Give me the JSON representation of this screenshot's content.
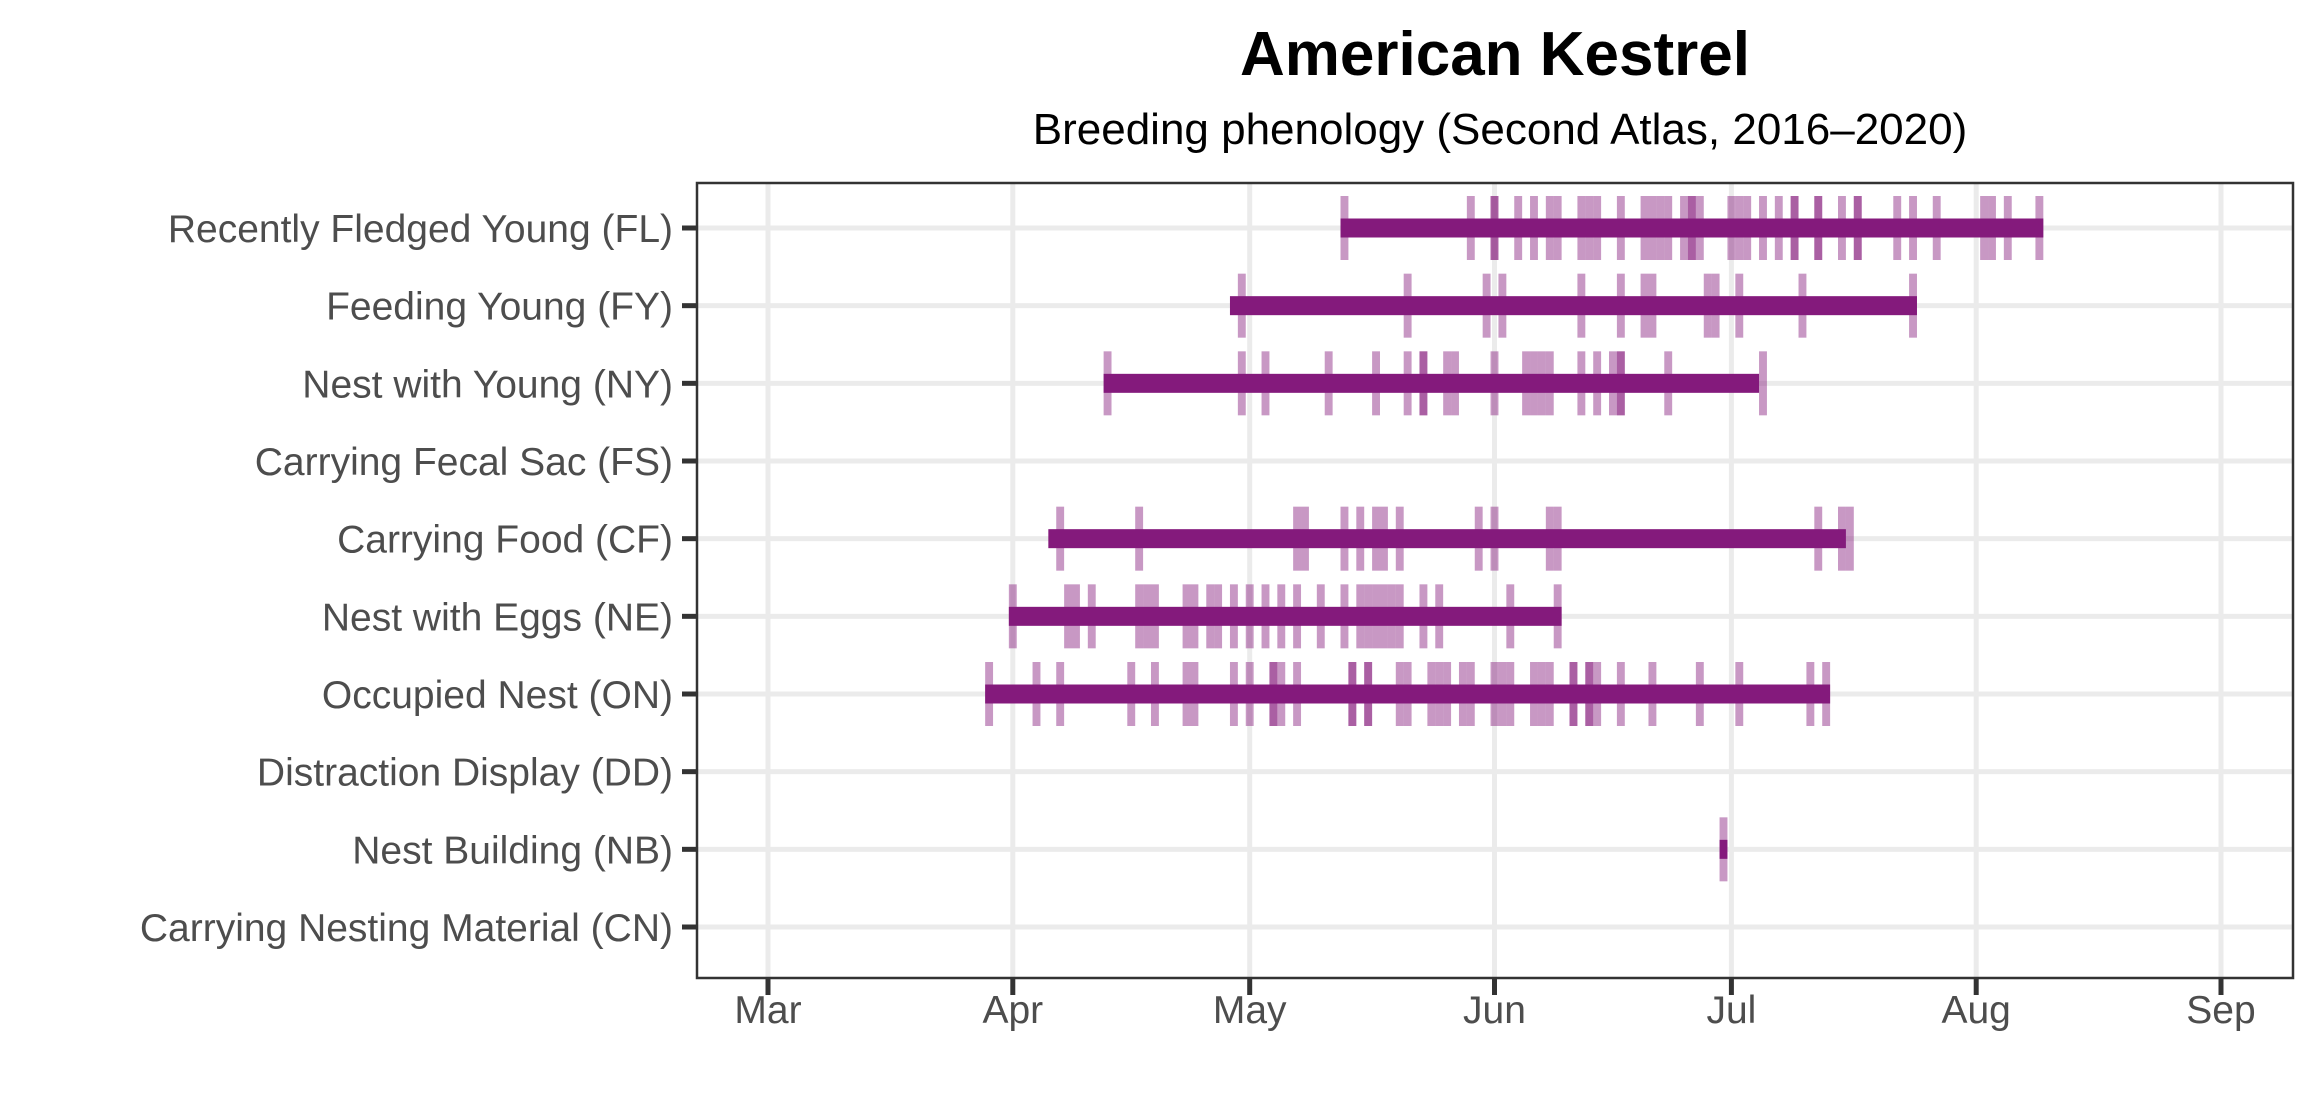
{
  "chart_data": {
    "type": "timeline",
    "title": "American Kestrel",
    "subtitle": "Breeding phenology (Second Atlas, 2016–2020)",
    "xlabel": "",
    "ylabel": "",
    "x_units": "day of year",
    "xlim": [
      54,
      250
    ],
    "x_ticks": [
      {
        "label": "Mar",
        "doy": 60
      },
      {
        "label": "Apr",
        "doy": 91
      },
      {
        "label": "May",
        "doy": 121
      },
      {
        "label": "Jun",
        "doy": 152
      },
      {
        "label": "Jul",
        "doy": 182
      },
      {
        "label": "Aug",
        "doy": 213
      },
      {
        "label": "Sep",
        "doy": 244
      }
    ],
    "grid": true,
    "colors": {
      "bar": "#841a7c",
      "observation": "#841a7c",
      "grid": "#ebebeb",
      "axis": "#333333",
      "label": "#4d4d4d"
    },
    "series": [
      {
        "name": "Recently Fledged Young (FL)",
        "range": [
          133,
          222
        ],
        "observations": [
          133,
          149,
          152,
          152,
          155,
          157,
          159,
          160,
          163,
          164,
          165,
          168,
          171,
          172,
          173,
          174,
          176,
          177,
          177,
          178,
          182,
          183,
          184,
          186,
          188,
          190,
          190,
          193,
          193,
          196,
          198,
          198,
          203,
          205,
          208,
          214,
          215,
          217,
          221
        ]
      },
      {
        "name": "Feeding Young (FY)",
        "range": [
          119,
          206
        ],
        "observations": [
          120,
          141,
          151,
          153,
          163,
          168,
          171,
          172,
          179,
          180,
          183,
          191,
          205
        ]
      },
      {
        "name": "Nest with Young (NY)",
        "range": [
          103,
          186
        ],
        "observations": [
          103,
          120,
          123,
          131,
          137,
          141,
          143,
          143,
          146,
          147,
          152,
          156,
          157,
          158,
          159,
          163,
          165,
          167,
          168,
          168,
          174,
          186
        ]
      },
      {
        "name": "Carrying Fecal Sac (FS)",
        "range": null,
        "observations": []
      },
      {
        "name": "Carrying Food (CF)",
        "range": [
          96,
          197
        ],
        "observations": [
          97,
          107,
          127,
          128,
          133,
          135,
          137,
          138,
          140,
          150,
          152,
          159,
          160,
          193,
          196,
          197
        ]
      },
      {
        "name": "Nest with Eggs (NE)",
        "range": [
          91,
          161
        ],
        "observations": [
          91,
          98,
          99,
          101,
          107,
          108,
          109,
          113,
          114,
          116,
          117,
          119,
          121,
          123,
          125,
          127,
          130,
          133,
          135,
          136,
          137,
          138,
          139,
          140,
          143,
          145,
          154,
          160
        ]
      },
      {
        "name": "Occupied Nest (ON)",
        "range": [
          88,
          195
        ],
        "observations": [
          88,
          94,
          97,
          106,
          109,
          113,
          114,
          119,
          121,
          124,
          124,
          125,
          127,
          134,
          134,
          136,
          136,
          140,
          141,
          144,
          145,
          146,
          148,
          149,
          152,
          153,
          154,
          157,
          158,
          159,
          162,
          162,
          164,
          164,
          165,
          168,
          172,
          178,
          183,
          192,
          194
        ]
      },
      {
        "name": "Distraction Display (DD)",
        "range": null,
        "observations": []
      },
      {
        "name": "Nest Building (NB)",
        "range": [
          181,
          182
        ],
        "observations": [
          181
        ]
      },
      {
        "name": "Carrying Nesting Material (CN)",
        "range": null,
        "observations": []
      }
    ]
  }
}
